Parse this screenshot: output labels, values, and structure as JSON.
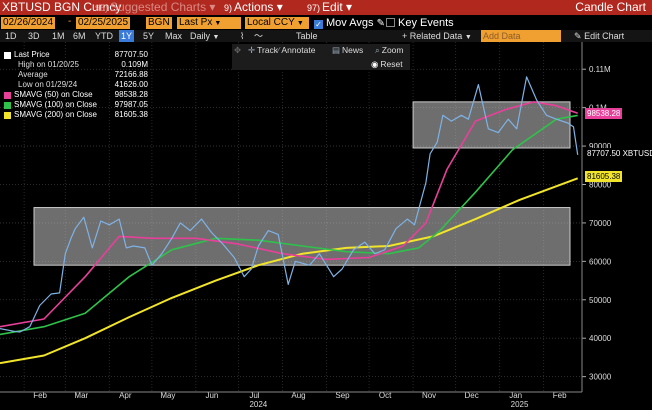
{
  "topbar": {
    "ticker": "XBTUSD BGN Curncy",
    "suggested_num": "96)",
    "suggested": "Suggested Charts",
    "suggested_dd": "▾",
    "actions_num": "9)",
    "actions": "Actions",
    "actions_dd": "▾",
    "edit_num": "97)",
    "edit": "Edit",
    "edit_dd": "▾",
    "chart_type": "Candle Chart"
  },
  "fields": {
    "start_date": "02/26/2024",
    "dash": "-",
    "end_date": "02/25/2025",
    "source": "BGN",
    "price_field": "Last Px",
    "currency": "Local CCY",
    "mov_avgs": "Mov Avgs",
    "key_events": "Key Events"
  },
  "periods": {
    "items": [
      "1D",
      "3D",
      "1M",
      "6M",
      "YTD",
      "1Y",
      "5Y",
      "Max"
    ],
    "active": "1Y",
    "frequency": "Daily",
    "table": "Table",
    "related": "+ Related Data",
    "add_data": "Add Data",
    "edit_chart": "Edit Chart"
  },
  "toolbar": {
    "track": "Track",
    "annotate": "Annotate",
    "news": "News",
    "zoom": "Zoom",
    "reset": "Reset"
  },
  "legend": {
    "last_price_label": "Last Price",
    "last_price_value": "87707.50",
    "high_label": "High on 01/20/25",
    "high_value": "0.109M",
    "average_label": "Average",
    "average_value": "72166.88",
    "low_label": "Low on 01/29/24",
    "low_value": "41626.00",
    "smavg50_label": "SMAVG (50)  on Close",
    "smavg50_value": "98538.28",
    "smavg100_label": "SMAVG (100)  on Close",
    "smavg100_value": "97987.05",
    "smavg200_label": "SMAVG (200)  on Close",
    "smavg200_value": "81605.38"
  },
  "colors": {
    "price": "#7fb2e6",
    "smavg50": "#e8409a",
    "smavg100": "#2fc24a",
    "smavg200": "#f2e42a",
    "header": "#b0281e",
    "field": "#f0a030",
    "active": "#3a7ad8"
  },
  "tags": {
    "smavg50": "98538.28",
    "last": "87707.50 XBTUSD",
    "smavg200": "81605.38"
  },
  "chart_data": {
    "type": "line",
    "y_axis": {
      "ticks": [
        30000,
        40000,
        50000,
        60000,
        70000,
        80000,
        90000,
        100000,
        110000
      ],
      "tick_labels": [
        "30000",
        "40000",
        "50000",
        "60000",
        "70000",
        "80000",
        "90000",
        "0.1M",
        "0.11M"
      ],
      "ylim": [
        26000,
        115000
      ],
      "position": "right"
    },
    "x_axis": {
      "range": [
        "2024-01-15",
        "2025-02-28"
      ],
      "month_labels": [
        "Feb",
        "Mar",
        "Apr",
        "May",
        "Jun",
        "Jul",
        "Aug",
        "Sep",
        "Oct",
        "Nov",
        "Dec",
        "Jan",
        "Feb"
      ],
      "month_dates": [
        "2024-02-01",
        "2024-03-01",
        "2024-04-01",
        "2024-05-01",
        "2024-06-01",
        "2024-07-01",
        "2024-08-01",
        "2024-09-01",
        "2024-10-01",
        "2024-11-01",
        "2024-12-01",
        "2025-01-01",
        "2025-02-01"
      ],
      "year_labels": [
        "2024",
        "2025"
      ],
      "year_dates": [
        "2024-07-15",
        "2025-01-15"
      ]
    },
    "grid": true,
    "series": [
      {
        "key": "price",
        "dates": [
          "2024-01-15",
          "2024-01-25",
          "2024-01-29",
          "2024-02-05",
          "2024-02-12",
          "2024-02-20",
          "2024-02-26",
          "2024-03-01",
          "2024-03-05",
          "2024-03-08",
          "2024-03-14",
          "2024-03-20",
          "2024-03-26",
          "2024-04-01",
          "2024-04-08",
          "2024-04-13",
          "2024-04-18",
          "2024-04-26",
          "2024-05-01",
          "2024-05-08",
          "2024-05-15",
          "2024-05-21",
          "2024-05-28",
          "2024-06-05",
          "2024-06-12",
          "2024-06-20",
          "2024-06-28",
          "2024-07-05",
          "2024-07-10",
          "2024-07-15",
          "2024-07-22",
          "2024-07-29",
          "2024-08-05",
          "2024-08-10",
          "2024-08-20",
          "2024-08-27",
          "2024-09-06",
          "2024-09-12",
          "2024-09-20",
          "2024-09-28",
          "2024-10-05",
          "2024-10-12",
          "2024-10-20",
          "2024-10-28",
          "2024-11-02",
          "2024-11-06",
          "2024-11-10",
          "2024-11-13",
          "2024-11-18",
          "2024-11-22",
          "2024-11-28",
          "2024-12-05",
          "2024-12-10",
          "2024-12-17",
          "2024-12-24",
          "2024-12-31",
          "2025-01-07",
          "2025-01-13",
          "2025-01-20",
          "2025-01-27",
          "2025-02-03",
          "2025-02-10",
          "2025-02-18",
          "2025-02-22",
          "2025-02-25"
        ],
        "values": [
          42500,
          41800,
          41626,
          43000,
          48500,
          51500,
          51800,
          62000,
          66000,
          68500,
          71500,
          63500,
          70500,
          69500,
          71000,
          63500,
          64000,
          63500,
          59000,
          62000,
          66000,
          70000,
          68000,
          71000,
          67500,
          64500,
          61000,
          56000,
          58000,
          64000,
          68000,
          67000,
          54000,
          60000,
          59000,
          62000,
          56000,
          58000,
          63000,
          65000,
          62000,
          63000,
          68500,
          71000,
          69500,
          75000,
          80500,
          88000,
          91000,
          98000,
          96500,
          98000,
          97000,
          106000,
          94500,
          93500,
          97000,
          94500,
          108000,
          102000,
          98000,
          97000,
          96000,
          95000,
          87707
        ]
      },
      {
        "key": "smavg50",
        "dates": [
          "2024-01-15",
          "2024-02-15",
          "2024-03-15",
          "2024-04-08",
          "2024-05-01",
          "2024-06-01",
          "2024-07-01",
          "2024-08-01",
          "2024-09-01",
          "2024-10-01",
          "2024-10-25",
          "2024-11-10",
          "2024-11-25",
          "2024-12-15",
          "2025-01-05",
          "2025-01-25",
          "2025-02-10",
          "2025-02-25"
        ],
        "values": [
          43000,
          45000,
          56000,
          66500,
          66000,
          66000,
          64500,
          62000,
          60500,
          61000,
          64000,
          70000,
          84000,
          96500,
          99500,
          101500,
          100500,
          98538
        ]
      },
      {
        "key": "smavg100",
        "dates": [
          "2024-01-15",
          "2024-02-15",
          "2024-03-15",
          "2024-04-15",
          "2024-05-15",
          "2024-06-15",
          "2024-07-15",
          "2024-08-15",
          "2024-09-15",
          "2024-10-15",
          "2024-11-05",
          "2024-11-20",
          "2024-12-15",
          "2025-01-10",
          "2025-02-10",
          "2025-02-25"
        ],
        "values": [
          41000,
          43000,
          46500,
          56000,
          63000,
          66000,
          65500,
          64000,
          62500,
          62000,
          63500,
          68000,
          78000,
          89000,
          97000,
          97987
        ]
      },
      {
        "key": "smavg200",
        "dates": [
          "2024-01-15",
          "2024-02-15",
          "2024-03-15",
          "2024-04-15",
          "2024-05-15",
          "2024-06-15",
          "2024-07-15",
          "2024-08-15",
          "2024-09-15",
          "2024-10-15",
          "2024-11-15",
          "2024-12-15",
          "2025-01-15",
          "2025-02-25"
        ],
        "values": [
          33500,
          35500,
          40000,
          45500,
          50500,
          55000,
          59000,
          62000,
          63500,
          64000,
          66500,
          71000,
          76000,
          81605
        ]
      }
    ],
    "shaded_ranges": [
      {
        "start": "2024-02-01",
        "end": "2025-02-28",
        "low": 59000,
        "high": 74000
      },
      {
        "start": "2024-11-01",
        "end": "2025-02-28",
        "low": 89500,
        "high": 101500
      }
    ]
  }
}
